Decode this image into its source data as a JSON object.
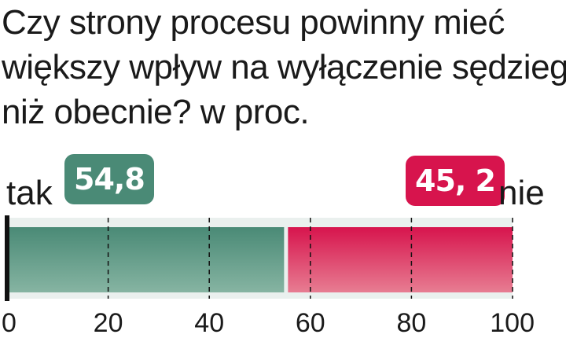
{
  "title_lines": [
    "Czy strony procesu powinny mieć",
    "większy wpływ na wyłączenie sędziego",
    "niż obecnie? w proc."
  ],
  "colors": {
    "yes": "#4a8a76",
    "yes_light": "#86b4a2",
    "no": "#d7144d",
    "no_light": "#e77d92",
    "track": "#eaf0ee",
    "axis": "#111111"
  },
  "chart_data": {
    "type": "bar",
    "orientation": "horizontal-stacked",
    "categories": [
      "tak",
      "nie"
    ],
    "series": [
      {
        "name": "tak",
        "value": 54.8,
        "label": "54,8"
      },
      {
        "name": "nie",
        "value": 45.2,
        "label": "45, 2"
      }
    ],
    "xlim": [
      0,
      100
    ],
    "ticks": [
      0,
      20,
      40,
      60,
      80,
      100
    ],
    "tick_labels": [
      "0",
      "20",
      "40",
      "60",
      "80",
      "100"
    ],
    "gridlines": "dashed"
  }
}
